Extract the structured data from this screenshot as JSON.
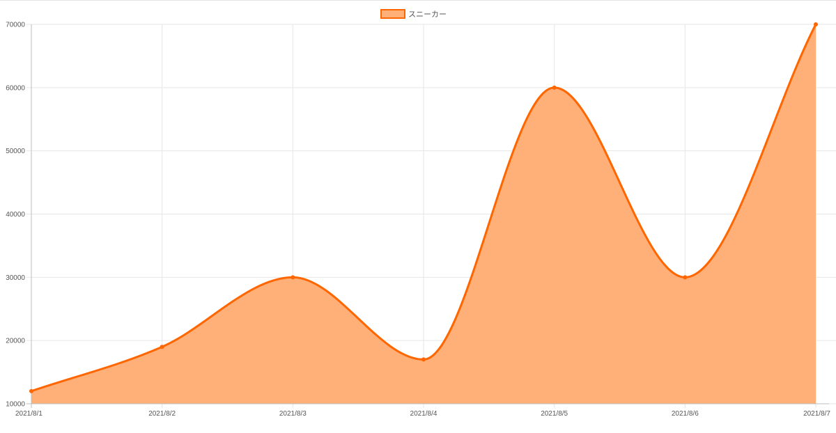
{
  "chart_data": {
    "type": "area",
    "categories": [
      "2021/8/1",
      "2021/8/2",
      "2021/8/3",
      "2021/8/4",
      "2021/8/5",
      "2021/8/6",
      "2021/8/7"
    ],
    "series": [
      {
        "name": "スニーカー",
        "values": [
          12000,
          19000,
          30000,
          17000,
          60000,
          30000,
          70000
        ]
      }
    ],
    "y_ticks": [
      "10000",
      "20000",
      "30000",
      "40000",
      "50000",
      "60000",
      "70000"
    ],
    "ylim": [
      10000,
      70000
    ],
    "legend": {
      "position": "top-center"
    },
    "grid": true,
    "smooth": true,
    "colors": {
      "line": "#ff6600",
      "fill": "#ffaf78",
      "grid": "#e6e6e6",
      "axis": "#bdbdbd"
    }
  }
}
